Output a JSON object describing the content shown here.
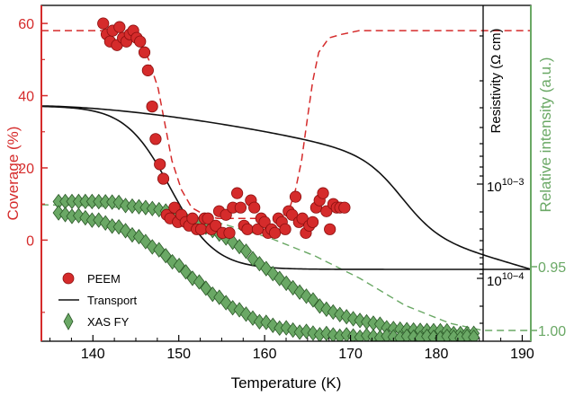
{
  "colors": {
    "peem": "#d52b2b",
    "peem_edge": "#8a0f0f",
    "transport": "#111111",
    "xas": "#6aa865",
    "xas_edge": "#2c5a29",
    "left_axis": "#d52b2b",
    "right_axis": "#6aa865",
    "guide_red": "#d52b2b",
    "guide_green": "#6aa865"
  },
  "chart_data": {
    "type": "scatter",
    "xlabel": "Temperature (K)",
    "xlim": [
      134,
      191
    ],
    "xticks": [
      "140",
      "150",
      "160",
      "170",
      "180",
      "190"
    ],
    "left_axis": {
      "label": "Coverage (%)",
      "ylim": [
        -28,
        65
      ],
      "ticks": [
        "60",
        "40",
        "20",
        "0"
      ],
      "tick_values": [
        60,
        40,
        20,
        0
      ]
    },
    "inner_right_axis": {
      "label": "Resistivity (Ω cm)",
      "scale": "log",
      "ticks": [
        "10−3",
        "10−4"
      ]
    },
    "outer_right_axis": {
      "label": "Relative intensity (a.u.)",
      "ticks": [
        "0.95",
        "1.00"
      ]
    },
    "legend": {
      "placement": "bottom-left",
      "entries": [
        "PEEM",
        "Transport",
        "XAS FY"
      ]
    },
    "series": [
      {
        "name": "PEEM",
        "marker": "circle",
        "x": [
          141.2,
          141.6,
          142.0,
          142.3,
          142.8,
          143.1,
          143.5,
          143.9,
          144.3,
          144.7,
          145.1,
          145.5,
          146.0,
          146.4,
          146.9,
          147.3,
          147.8,
          148.2,
          148.6,
          149.0,
          149.5,
          149.9,
          150.3,
          150.8,
          151.2,
          151.6,
          152.1,
          152.6,
          153.0,
          153.4,
          153.8,
          154.3,
          154.7,
          155.1,
          155.5,
          155.9,
          156.3,
          156.8,
          157.2,
          157.6,
          158.0,
          158.4,
          158.8,
          159.2,
          159.6,
          160.0,
          160.4,
          160.8,
          161.2,
          161.6,
          162.0,
          162.4,
          162.8,
          163.2,
          163.6,
          164.0,
          164.4,
          164.8,
          165.2,
          165.6,
          166.0,
          166.4,
          166.8,
          167.2,
          167.6,
          168.0,
          168.4,
          168.8,
          169.3
        ],
        "y": [
          60,
          57,
          55,
          58,
          54,
          59,
          56,
          55,
          57,
          58,
          56,
          55,
          52,
          47,
          37,
          28,
          21,
          17,
          7,
          6,
          9,
          5,
          7,
          5,
          4,
          6,
          3,
          3,
          6,
          6,
          3,
          4,
          8,
          2,
          7,
          2,
          9,
          13,
          9,
          4,
          3,
          11,
          9,
          3,
          6,
          5,
          2,
          3,
          2,
          6,
          5,
          3,
          8,
          7,
          12,
          5,
          6,
          2,
          4,
          5,
          9,
          11,
          13,
          8,
          3,
          10,
          9,
          9,
          9
        ],
        "guide": {
          "x": [
            134,
            142,
            145,
            146.5,
            147.6,
            148.4,
            149.2,
            150.3,
            151.5,
            153,
            154.5,
            156,
            158,
            160,
            161.8,
            162.8,
            163.6,
            164.3,
            165,
            165.6,
            166.3,
            167.5,
            169,
            171,
            175,
            180,
            185,
            191
          ],
          "y": [
            58,
            58,
            57,
            50,
            42,
            32,
            22,
            14,
            9,
            7,
            6,
            6,
            6,
            6,
            6,
            8,
            14,
            22,
            34,
            44,
            52,
            56,
            57,
            58,
            58,
            58,
            58,
            58
          ]
        }
      },
      {
        "name": "Transport",
        "line": "solid"
      },
      {
        "name": "XAS FY",
        "marker": "diamond"
      }
    ]
  }
}
